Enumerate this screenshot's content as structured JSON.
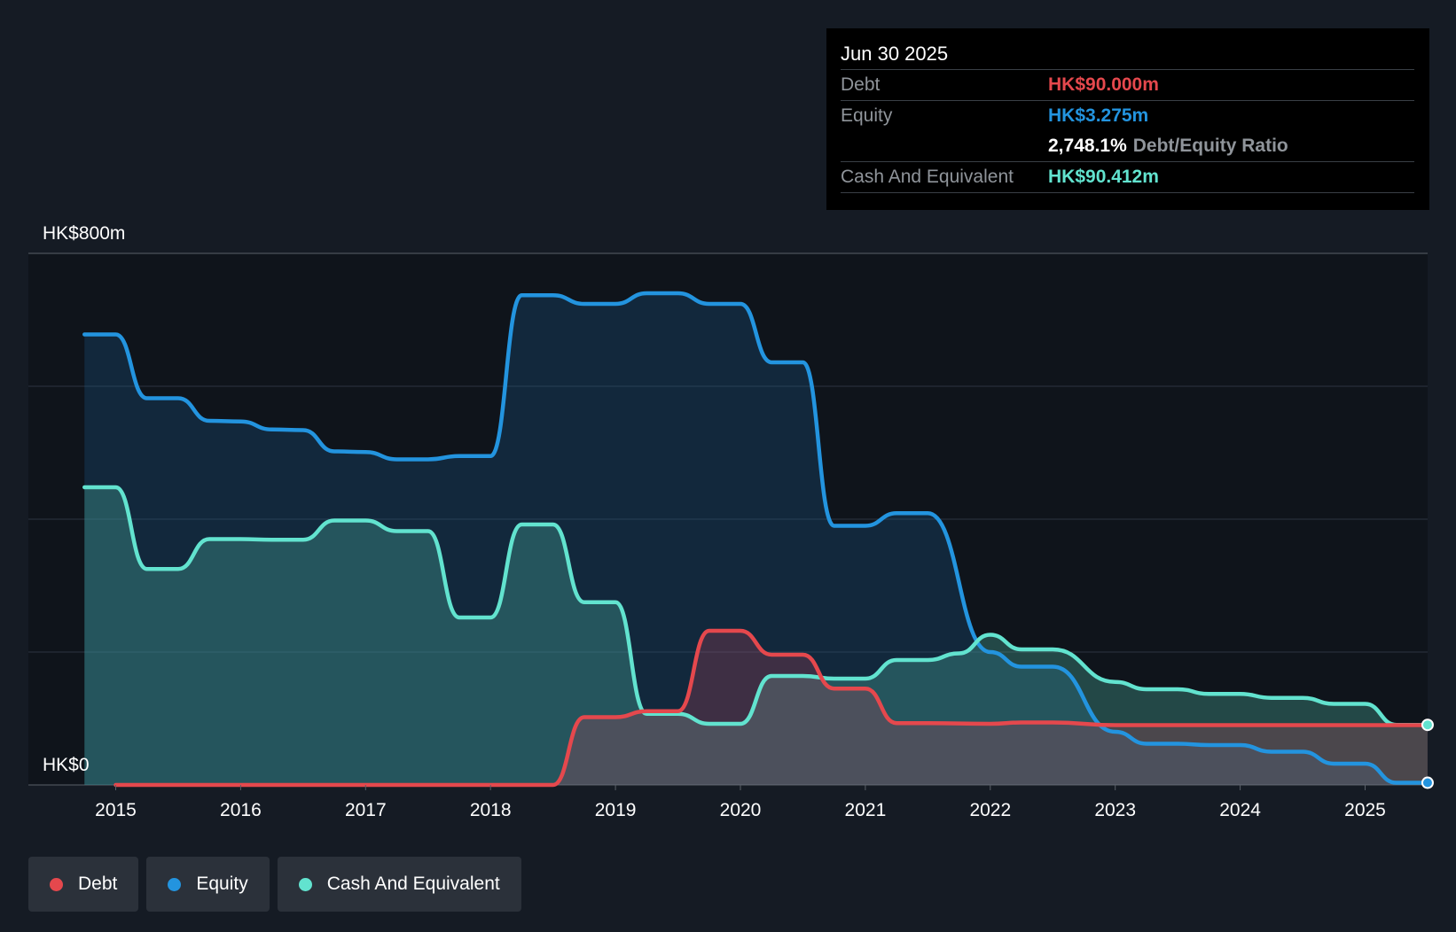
{
  "colors": {
    "debt": "#e5484d",
    "equity": "#2394df",
    "cash": "#62e3cf",
    "background": "#151b24",
    "plot_background": "#0f141b"
  },
  "tooltip": {
    "date": "Jun 30 2025",
    "debt_label": "Debt",
    "debt_value": "HK$90.000m",
    "equity_label": "Equity",
    "equity_value": "HK$3.275m",
    "ratio_value": "2,748.1%",
    "ratio_label": "Debt/Equity Ratio",
    "cash_label": "Cash And Equivalent",
    "cash_value": "HK$90.412m"
  },
  "legend": [
    {
      "key": "debt",
      "label": "Debt"
    },
    {
      "key": "equity",
      "label": "Equity"
    },
    {
      "key": "cash",
      "label": "Cash And Equivalent"
    }
  ],
  "chart_data": {
    "type": "area",
    "ylabel_top": "HK$800m",
    "ylabel_bottom": "HK$0",
    "ylim": [
      0,
      800
    ],
    "grid": true,
    "legend_position": "bottom-left",
    "xlim": [
      2014.75,
      2025.5
    ],
    "x_ticks": [
      2015,
      2016,
      2017,
      2018,
      2019,
      2020,
      2021,
      2022,
      2023,
      2024,
      2025
    ],
    "series": [
      {
        "key": "equity",
        "name": "Equity",
        "points": [
          [
            2014.75,
            678
          ],
          [
            2015.0,
            678
          ],
          [
            2015.25,
            582
          ],
          [
            2015.5,
            582
          ],
          [
            2015.75,
            548
          ],
          [
            2016.0,
            547
          ],
          [
            2016.25,
            535
          ],
          [
            2016.5,
            534
          ],
          [
            2016.75,
            502
          ],
          [
            2017.0,
            501
          ],
          [
            2017.25,
            490
          ],
          [
            2017.5,
            490
          ],
          [
            2017.75,
            495
          ],
          [
            2018.0,
            495
          ],
          [
            2018.25,
            737
          ],
          [
            2018.5,
            737
          ],
          [
            2018.75,
            724
          ],
          [
            2019.0,
            724
          ],
          [
            2019.25,
            740
          ],
          [
            2019.5,
            740
          ],
          [
            2019.75,
            724
          ],
          [
            2020.0,
            724
          ],
          [
            2020.25,
            636
          ],
          [
            2020.5,
            636
          ],
          [
            2020.75,
            390
          ],
          [
            2021.0,
            390
          ],
          [
            2021.25,
            409
          ],
          [
            2021.5,
            409
          ],
          [
            2022.0,
            200
          ],
          [
            2022.25,
            178
          ],
          [
            2022.5,
            178
          ],
          [
            2023.0,
            80
          ],
          [
            2023.25,
            62
          ],
          [
            2023.5,
            62
          ],
          [
            2023.75,
            60
          ],
          [
            2024.0,
            60
          ],
          [
            2024.25,
            50
          ],
          [
            2024.5,
            50
          ],
          [
            2024.75,
            32
          ],
          [
            2025.0,
            32
          ],
          [
            2025.25,
            3.3
          ],
          [
            2025.5,
            3.3
          ]
        ]
      },
      {
        "key": "cash",
        "name": "Cash And Equivalent",
        "points": [
          [
            2014.75,
            448
          ],
          [
            2015.0,
            448
          ],
          [
            2015.25,
            325
          ],
          [
            2015.5,
            325
          ],
          [
            2015.75,
            370
          ],
          [
            2016.0,
            370
          ],
          [
            2016.25,
            369
          ],
          [
            2016.5,
            369
          ],
          [
            2016.75,
            398
          ],
          [
            2017.0,
            398
          ],
          [
            2017.25,
            382
          ],
          [
            2017.5,
            382
          ],
          [
            2017.75,
            252
          ],
          [
            2018.0,
            252
          ],
          [
            2018.25,
            392
          ],
          [
            2018.5,
            392
          ],
          [
            2018.75,
            275
          ],
          [
            2019.0,
            275
          ],
          [
            2019.25,
            107
          ],
          [
            2019.5,
            107
          ],
          [
            2019.75,
            92
          ],
          [
            2020.0,
            92
          ],
          [
            2020.25,
            164
          ],
          [
            2020.5,
            164
          ],
          [
            2020.75,
            160
          ],
          [
            2021.0,
            160
          ],
          [
            2021.25,
            188
          ],
          [
            2021.5,
            188
          ],
          [
            2021.75,
            198
          ],
          [
            2022.0,
            226
          ],
          [
            2022.25,
            204
          ],
          [
            2022.5,
            204
          ],
          [
            2023.0,
            155
          ],
          [
            2023.25,
            144
          ],
          [
            2023.5,
            144
          ],
          [
            2023.75,
            137
          ],
          [
            2024.0,
            137
          ],
          [
            2024.25,
            131
          ],
          [
            2024.5,
            131
          ],
          [
            2024.75,
            122
          ],
          [
            2025.0,
            122
          ],
          [
            2025.25,
            90.4
          ],
          [
            2025.5,
            90.4
          ]
        ]
      },
      {
        "key": "debt",
        "name": "Debt",
        "points": [
          [
            2015.0,
            0
          ],
          [
            2018.5,
            0
          ],
          [
            2018.75,
            102
          ],
          [
            2019.0,
            102
          ],
          [
            2019.25,
            111
          ],
          [
            2019.5,
            111
          ],
          [
            2019.75,
            232
          ],
          [
            2020.0,
            232
          ],
          [
            2020.25,
            196
          ],
          [
            2020.5,
            196
          ],
          [
            2020.75,
            145
          ],
          [
            2021.0,
            145
          ],
          [
            2021.25,
            93
          ],
          [
            2021.5,
            93
          ],
          [
            2022.0,
            92
          ],
          [
            2022.25,
            94
          ],
          [
            2022.5,
            94
          ],
          [
            2023.0,
            90
          ],
          [
            2025.5,
            90
          ]
        ]
      }
    ]
  }
}
